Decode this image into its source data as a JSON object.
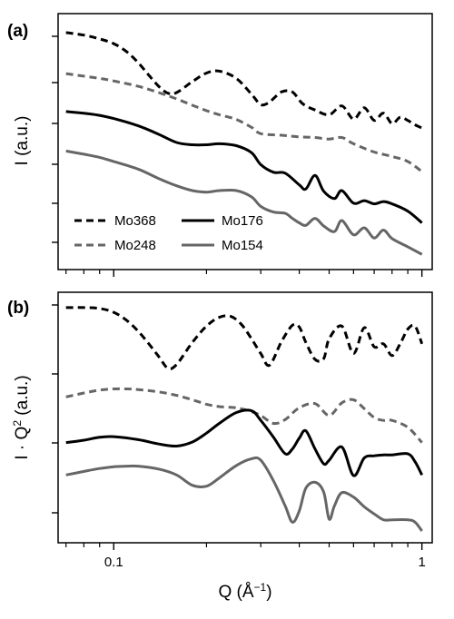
{
  "chart_data": [
    {
      "type": "line",
      "panel": "(a)",
      "ylabel": "I (a.u.)",
      "xscale": "log",
      "yscale": "log",
      "xlim": [
        0.066,
        1.08
      ],
      "legend": {
        "placement": "bottom-left",
        "columns": 2
      },
      "series": [
        {
          "name": "Mo368",
          "style": "dashed",
          "color": "#000000",
          "x": [
            0.07,
            0.08,
            0.09,
            0.1,
            0.11,
            0.12,
            0.13,
            0.14,
            0.15,
            0.16,
            0.18,
            0.2,
            0.22,
            0.25,
            0.28,
            0.3,
            0.32,
            0.35,
            0.38,
            0.41,
            0.45,
            0.5,
            0.55,
            0.6,
            0.65,
            0.7,
            0.75,
            0.8,
            0.85,
            0.9,
            0.95,
            1.0
          ],
          "y": [
            6.3,
            6.22,
            6.1,
            5.95,
            5.7,
            5.35,
            4.95,
            4.6,
            4.38,
            4.4,
            4.75,
            5.02,
            5.08,
            4.85,
            4.35,
            4.02,
            4.1,
            4.42,
            4.42,
            4.05,
            3.85,
            3.7,
            3.98,
            3.56,
            3.92,
            3.52,
            3.75,
            3.42,
            3.62,
            3.52,
            3.38,
            3.28
          ]
        },
        {
          "name": "Mo248",
          "style": "dashed",
          "color": "#666666",
          "x": [
            0.07,
            0.08,
            0.09,
            0.1,
            0.12,
            0.14,
            0.16,
            0.18,
            0.2,
            0.22,
            0.25,
            0.28,
            0.3,
            0.35,
            0.4,
            0.45,
            0.5,
            0.55,
            0.6,
            0.7,
            0.8,
            0.9,
            1.0
          ],
          "y": [
            5.0,
            4.92,
            4.85,
            4.77,
            4.6,
            4.4,
            4.2,
            4.0,
            3.83,
            3.7,
            3.55,
            3.3,
            3.1,
            3.05,
            3.0,
            2.98,
            2.93,
            2.98,
            2.78,
            2.52,
            2.38,
            2.22,
            1.9
          ]
        },
        {
          "name": "Mo176",
          "style": "solid",
          "color": "#000000",
          "x": [
            0.07,
            0.08,
            0.09,
            0.1,
            0.12,
            0.14,
            0.16,
            0.18,
            0.2,
            0.22,
            0.25,
            0.28,
            0.3,
            0.33,
            0.36,
            0.4,
            0.42,
            0.45,
            0.48,
            0.52,
            0.55,
            0.6,
            0.65,
            0.7,
            0.75,
            0.8,
            0.9,
            1.0
          ],
          "y": [
            3.8,
            3.75,
            3.68,
            3.58,
            3.35,
            3.08,
            2.82,
            2.75,
            2.75,
            2.78,
            2.72,
            2.5,
            2.12,
            1.88,
            1.85,
            1.48,
            1.35,
            1.78,
            1.28,
            1.05,
            1.3,
            0.9,
            0.98,
            0.88,
            0.95,
            0.88,
            0.65,
            0.28
          ]
        },
        {
          "name": "Mo154",
          "style": "solid",
          "color": "#666666",
          "x": [
            0.07,
            0.08,
            0.09,
            0.1,
            0.12,
            0.14,
            0.16,
            0.18,
            0.2,
            0.22,
            0.25,
            0.28,
            0.3,
            0.33,
            0.36,
            0.38,
            0.4,
            0.42,
            0.45,
            0.48,
            0.52,
            0.55,
            0.6,
            0.65,
            0.7,
            0.75,
            0.8,
            0.9,
            1.0
          ],
          "y": [
            2.55,
            2.45,
            2.35,
            2.22,
            1.98,
            1.68,
            1.45,
            1.3,
            1.25,
            1.3,
            1.3,
            1.1,
            0.8,
            0.62,
            0.58,
            0.42,
            0.28,
            0.2,
            0.42,
            0.18,
            0.0,
            0.35,
            -0.1,
            0.12,
            -0.2,
            0.05,
            -0.22,
            -0.48,
            -0.72
          ]
        }
      ]
    },
    {
      "type": "line",
      "panel": "(b)",
      "ylabel_base": "I · Q",
      "ylabel_sup": "2",
      "ylabel_suffix": " (a.u.)",
      "xlabel_base": "Q (Å",
      "xlabel_sup": "−1",
      "xlabel_suffix": ")",
      "xscale": "log",
      "yscale": "log",
      "xlim": [
        0.066,
        1.08
      ],
      "xticks": [
        {
          "value": 0.1,
          "label": "0.1"
        },
        {
          "value": 1,
          "label": "1"
        }
      ],
      "series": [
        {
          "name": "Mo368",
          "style": "dashed",
          "color": "#000000",
          "x": [
            0.07,
            0.08,
            0.09,
            0.1,
            0.11,
            0.12,
            0.13,
            0.14,
            0.15,
            0.16,
            0.18,
            0.2,
            0.22,
            0.24,
            0.26,
            0.28,
            0.3,
            0.32,
            0.35,
            0.38,
            0.4,
            0.42,
            0.45,
            0.48,
            0.5,
            0.55,
            0.6,
            0.65,
            0.7,
            0.75,
            0.8,
            0.85,
            0.9,
            0.95,
            1.0
          ],
          "y": [
            3.68,
            3.68,
            3.65,
            3.52,
            3.25,
            2.88,
            2.45,
            2.02,
            1.62,
            1.75,
            2.5,
            3.05,
            3.35,
            3.38,
            3.1,
            2.62,
            2.12,
            1.72,
            2.52,
            3.08,
            3.02,
            2.5,
            1.92,
            1.95,
            2.62,
            3.05,
            2.12,
            3.0,
            2.35,
            2.45,
            2.05,
            2.45,
            2.95,
            3.05,
            2.45
          ]
        },
        {
          "name": "Mo248",
          "style": "dashed",
          "color": "#666666",
          "x": [
            0.07,
            0.08,
            0.09,
            0.1,
            0.11,
            0.12,
            0.14,
            0.16,
            0.18,
            0.2,
            0.22,
            0.25,
            0.28,
            0.3,
            0.33,
            0.36,
            0.4,
            0.45,
            0.5,
            0.55,
            0.6,
            0.65,
            0.7,
            0.75,
            0.8,
            0.9,
            1.0
          ],
          "y": [
            0.65,
            0.78,
            0.88,
            0.92,
            0.92,
            0.9,
            0.82,
            0.7,
            0.55,
            0.4,
            0.32,
            0.28,
            0.15,
            0.02,
            -0.25,
            -0.12,
            0.28,
            0.42,
            0.02,
            0.45,
            0.55,
            0.25,
            -0.05,
            -0.15,
            -0.15,
            -0.38,
            -0.9
          ]
        },
        {
          "name": "Mo176",
          "style": "solid",
          "color": "#000000",
          "x": [
            0.07,
            0.08,
            0.09,
            0.1,
            0.12,
            0.14,
            0.16,
            0.18,
            0.2,
            0.22,
            0.25,
            0.28,
            0.3,
            0.33,
            0.36,
            0.38,
            0.4,
            0.42,
            0.45,
            0.48,
            0.5,
            0.55,
            0.6,
            0.65,
            0.7,
            0.75,
            0.8,
            0.9,
            0.95,
            1.0
          ],
          "y": [
            -0.9,
            -0.82,
            -0.72,
            -0.7,
            -0.8,
            -0.95,
            -1.02,
            -0.88,
            -0.58,
            -0.25,
            0.12,
            0.18,
            -0.15,
            -0.72,
            -1.28,
            -1.12,
            -0.75,
            -0.5,
            -1.12,
            -1.62,
            -1.5,
            -1.05,
            -2.02,
            -1.42,
            -1.35,
            -1.32,
            -1.32,
            -1.28,
            -1.55,
            -2.0
          ]
        },
        {
          "name": "Mo154",
          "style": "solid",
          "color": "#666666",
          "x": [
            0.07,
            0.08,
            0.09,
            0.1,
            0.11,
            0.12,
            0.14,
            0.16,
            0.18,
            0.2,
            0.22,
            0.25,
            0.28,
            0.3,
            0.33,
            0.36,
            0.38,
            0.4,
            0.42,
            0.45,
            0.48,
            0.5,
            0.52,
            0.55,
            0.6,
            0.65,
            0.7,
            0.75,
            0.8,
            0.9,
            0.95,
            1.0
          ],
          "y": [
            -2.0,
            -1.88,
            -1.78,
            -1.72,
            -1.7,
            -1.7,
            -1.8,
            -2.0,
            -2.35,
            -2.38,
            -2.1,
            -1.68,
            -1.45,
            -1.5,
            -2.2,
            -3.05,
            -3.6,
            -3.22,
            -2.45,
            -2.25,
            -2.58,
            -3.5,
            -3.05,
            -2.6,
            -2.75,
            -3.08,
            -3.32,
            -3.52,
            -3.52,
            -3.52,
            -3.6,
            -3.9
          ]
        }
      ]
    }
  ]
}
